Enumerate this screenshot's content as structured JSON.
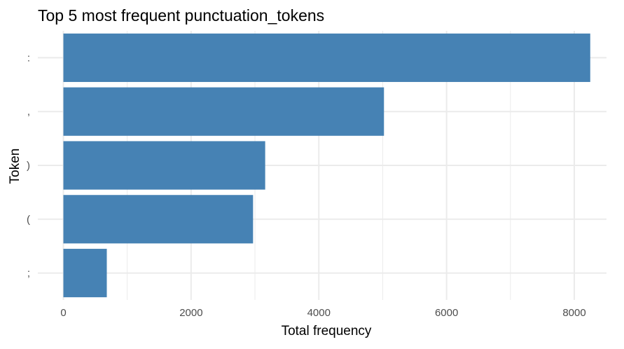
{
  "chart_data": {
    "type": "bar",
    "orientation": "horizontal",
    "title": "Top 5 most frequent punctuation_tokens",
    "xlabel": "Total frequency",
    "ylabel": "Token",
    "categories": [
      ":",
      ",",
      ")",
      "(",
      ";"
    ],
    "values": [
      8250,
      5020,
      3160,
      2970,
      680
    ],
    "xlim": [
      0,
      8500
    ],
    "xticks": [
      {
        "value": 0,
        "label": "0"
      },
      {
        "value": 2000,
        "label": "2000"
      },
      {
        "value": 4000,
        "label": "4000"
      },
      {
        "value": 6000,
        "label": "6000"
      },
      {
        "value": 8000,
        "label": "8000"
      }
    ],
    "grid": true,
    "bar_color": "#4682B4",
    "grid_color": "#EBEBEB"
  }
}
